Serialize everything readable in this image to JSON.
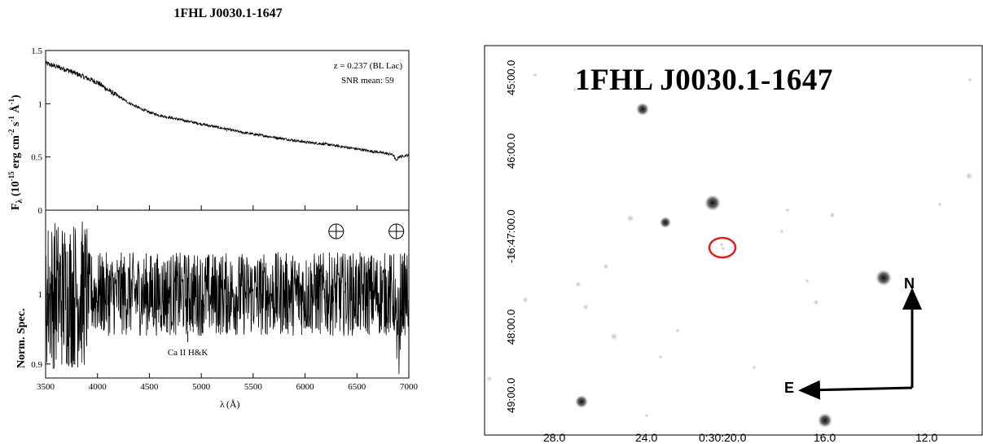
{
  "figure": {
    "title": "1FHL J0030.1-1647"
  },
  "chart_data": [
    {
      "type": "line",
      "panel": "top",
      "ylabel": "Fλ (10⁻¹⁵ erg cm⁻² s⁻¹ Å⁻¹)",
      "ylabel_parts": {
        "main": "F",
        "sub": "λ",
        "open": " (10",
        "sup1": "-15",
        "mid": " erg cm",
        "sup2": "-2",
        "s": " s",
        "sup3": "-1",
        "a": " Å",
        "sup4": "-1",
        "close": ")"
      },
      "xlim": [
        3500,
        7000
      ],
      "ylim": [
        0,
        1.5
      ],
      "yticks": [
        "0",
        "0.5",
        "1",
        "1.5"
      ],
      "annotations": [
        "z = 0.237 (BL Lac)",
        "SNR mean: 59"
      ],
      "series": [
        {
          "x": [
            3500,
            3600,
            3700,
            3800,
            3900,
            4000,
            4100,
            4200,
            4300,
            4400,
            4500,
            4600,
            4700,
            4800,
            4900,
            5000,
            5200,
            5400,
            5600,
            5800,
            6000,
            6200,
            6400,
            6600,
            6800,
            6850,
            6880,
            6900,
            6950,
            7000
          ],
          "y": [
            1.38,
            1.35,
            1.32,
            1.28,
            1.24,
            1.2,
            1.13,
            1.07,
            1.01,
            0.96,
            0.92,
            0.89,
            0.87,
            0.85,
            0.83,
            0.81,
            0.77,
            0.73,
            0.7,
            0.67,
            0.64,
            0.62,
            0.59,
            0.56,
            0.53,
            0.52,
            0.46,
            0.5,
            0.51,
            0.52
          ]
        }
      ]
    },
    {
      "type": "line",
      "panel": "bottom",
      "ylabel": "Norm. Spec.",
      "xlabel": "λ (Å)",
      "xlabel_parts": {
        "lam": "λ",
        "unit": "(Å)"
      },
      "xlim": [
        3500,
        7000
      ],
      "ylim": [
        0.88,
        1.12
      ],
      "xticks": [
        "3500",
        "4000",
        "4500",
        "5000",
        "5500",
        "6000",
        "6500",
        "7000"
      ],
      "yticks": [
        "0.9",
        "1"
      ],
      "features": [
        {
          "label": "Ca II H&K",
          "x": 4870
        }
      ],
      "telluric_symbols": [
        6300,
        6880
      ],
      "series": [
        {
          "baseline": 1.0,
          "noise_amplitude": 0.06
        }
      ]
    }
  ],
  "finder_chart": {
    "title": "1FHL J0030.1-1647",
    "dec_labels": [
      "45:00.0",
      "46:00.0",
      "-16:47:00.0",
      "48:00.0",
      "49:00.0"
    ],
    "ra_labels": [
      "28.0",
      "24.0",
      "0:30:20.0",
      "16.0",
      "12.0"
    ],
    "compass": {
      "north": "N",
      "east": "E"
    },
    "marker_color": "#e02020"
  }
}
